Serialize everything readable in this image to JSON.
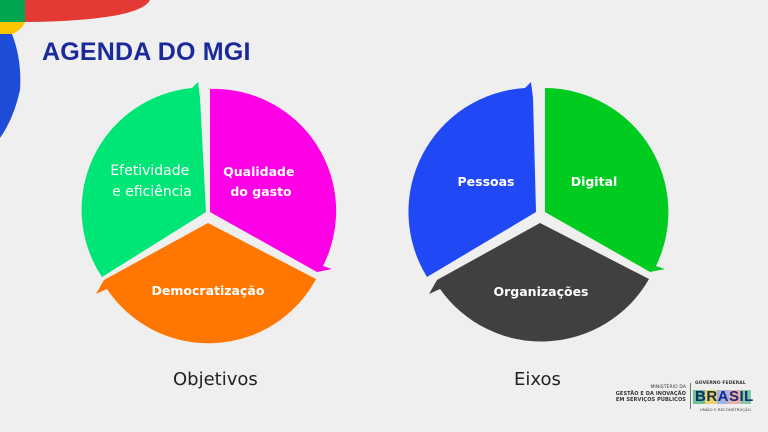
{
  "slide": {
    "title": "AGENDA DO MGI",
    "colors": {
      "background": "#efefef",
      "title": "#1b2a9a",
      "accent_red": "#e53935",
      "accent_yellow": "#f9c600",
      "accent_green": "#00a650",
      "accent_blue": "#1e4dd8"
    }
  },
  "diagrams": {
    "objetivos": {
      "caption": "Objetivos",
      "segments": [
        {
          "label_lines": [
            "Efetividade",
            "e eficiência"
          ],
          "color": "#00e676"
        },
        {
          "label_lines": [
            "Qualidade",
            "do gasto"
          ],
          "color": "#ff00e6"
        },
        {
          "label_lines": [
            "Democratização"
          ],
          "color": "#ff7700"
        }
      ]
    },
    "eixos": {
      "caption": "Eixos",
      "segments": [
        {
          "label_lines": [
            "Pessoas"
          ],
          "color": "#2148f5"
        },
        {
          "label_lines": [
            "Digital"
          ],
          "color": "#00cc1f"
        },
        {
          "label_lines": [
            "Organizações"
          ],
          "color": "#404040"
        }
      ]
    }
  },
  "footer": {
    "ministry_lines": [
      "MINISTÉRIO DA",
      "GESTÃO E DA INOVAÇÃO",
      "EM SERVIÇOS PÚBLICOS"
    ],
    "gov_label": "GOVERNO FEDERAL",
    "brasil_word": "BRASIL",
    "tagline": "UNIÃO E RECONSTRUÇÃO"
  }
}
